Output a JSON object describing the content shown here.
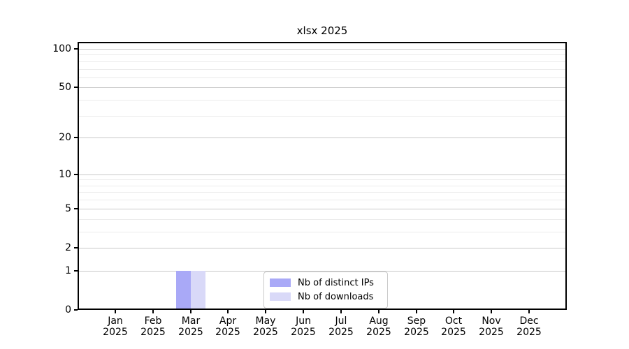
{
  "title": "xlsx 2025",
  "legend": {
    "position": "lower center",
    "items": [
      "Nb of distinct IPs",
      "Nb of downloads"
    ]
  },
  "chart_data": {
    "type": "bar",
    "title": "xlsx 2025",
    "categories": [
      "Jan",
      "Feb",
      "Mar",
      "Apr",
      "May",
      "Jun",
      "Jul",
      "Aug",
      "Sep",
      "Oct",
      "Nov",
      "Dec"
    ],
    "year": "2025",
    "series": [
      {
        "name": "Nb of distinct IPs",
        "color": "#a9a9f7",
        "values": [
          0,
          0,
          1,
          0,
          0,
          0,
          0,
          0,
          0,
          0,
          0,
          0
        ]
      },
      {
        "name": "Nb of downloads",
        "color": "#d9d9f8",
        "values": [
          0,
          0,
          1,
          0,
          0,
          0,
          0,
          0,
          0,
          0,
          0,
          0
        ]
      }
    ],
    "xlabel": "",
    "ylabel": "",
    "yscale": "log1p",
    "ylim": [
      0,
      113
    ],
    "yticks": [
      0,
      1,
      2,
      5,
      10,
      20,
      50,
      100
    ],
    "yticks_minor": [
      3,
      4,
      6,
      7,
      8,
      9,
      30,
      40,
      60,
      70,
      80,
      90
    ],
    "grid": true,
    "legend_position": "lower center",
    "colors": {
      "background": "#ffffff",
      "axis": "#000000",
      "grid_major": "#c9c9c9",
      "grid_minor": "#ebebeb",
      "legend_border": "#c9c9c9"
    }
  }
}
